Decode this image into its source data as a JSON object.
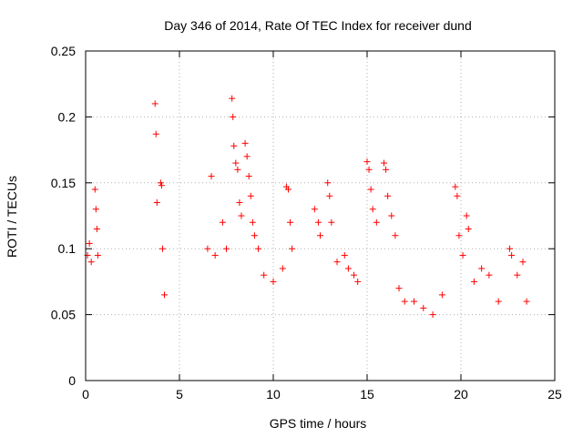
{
  "chart_data": {
    "type": "scatter",
    "title": "Day 346 of 2014, Rate Of TEC Index for receiver dund",
    "xlabel": "GPS time / hours",
    "ylabel": "ROTI / TECUs",
    "xlim": [
      0,
      25
    ],
    "ylim": [
      0,
      0.25
    ],
    "xticks": [
      0,
      5,
      10,
      15,
      20,
      25
    ],
    "xtick_labels": [
      "0",
      "5",
      "10",
      "15",
      "20",
      "25"
    ],
    "yticks": [
      0,
      0.05,
      0.1,
      0.15,
      0.2,
      0.25
    ],
    "ytick_labels": [
      "0",
      "0.05",
      "0.1",
      "0.15",
      "0.2",
      "0.25"
    ],
    "grid": true,
    "marker": "+",
    "marker_color": "#ff0000",
    "series": [
      {
        "name": "ROTI",
        "points": [
          [
            0.1,
            0.095
          ],
          [
            0.2,
            0.104
          ],
          [
            0.3,
            0.09
          ],
          [
            0.5,
            0.145
          ],
          [
            0.55,
            0.13
          ],
          [
            0.6,
            0.115
          ],
          [
            0.65,
            0.095
          ],
          [
            3.7,
            0.21
          ],
          [
            3.75,
            0.187
          ],
          [
            3.8,
            0.135
          ],
          [
            4.0,
            0.15
          ],
          [
            4.05,
            0.148
          ],
          [
            4.1,
            0.1
          ],
          [
            4.2,
            0.065
          ],
          [
            6.5,
            0.1
          ],
          [
            6.7,
            0.155
          ],
          [
            6.9,
            0.095
          ],
          [
            7.3,
            0.12
          ],
          [
            7.5,
            0.1
          ],
          [
            7.8,
            0.214
          ],
          [
            7.85,
            0.2
          ],
          [
            7.9,
            0.178
          ],
          [
            8.0,
            0.165
          ],
          [
            8.1,
            0.16
          ],
          [
            8.2,
            0.135
          ],
          [
            8.3,
            0.125
          ],
          [
            8.5,
            0.18
          ],
          [
            8.6,
            0.17
          ],
          [
            8.7,
            0.155
          ],
          [
            8.8,
            0.14
          ],
          [
            8.9,
            0.12
          ],
          [
            9.0,
            0.11
          ],
          [
            9.2,
            0.1
          ],
          [
            9.5,
            0.08
          ],
          [
            10.0,
            0.075
          ],
          [
            10.5,
            0.085
          ],
          [
            10.7,
            0.147
          ],
          [
            10.8,
            0.145
          ],
          [
            10.9,
            0.12
          ],
          [
            11.0,
            0.1
          ],
          [
            12.2,
            0.13
          ],
          [
            12.4,
            0.12
          ],
          [
            12.5,
            0.11
          ],
          [
            12.9,
            0.15
          ],
          [
            13.0,
            0.14
          ],
          [
            13.1,
            0.12
          ],
          [
            13.4,
            0.09
          ],
          [
            13.8,
            0.095
          ],
          [
            14.0,
            0.085
          ],
          [
            14.3,
            0.08
          ],
          [
            14.5,
            0.075
          ],
          [
            15.0,
            0.166
          ],
          [
            15.1,
            0.16
          ],
          [
            15.2,
            0.145
          ],
          [
            15.3,
            0.13
          ],
          [
            15.5,
            0.12
          ],
          [
            15.9,
            0.165
          ],
          [
            16.0,
            0.16
          ],
          [
            16.1,
            0.14
          ],
          [
            16.3,
            0.125
          ],
          [
            16.5,
            0.11
          ],
          [
            16.7,
            0.07
          ],
          [
            17.0,
            0.06
          ],
          [
            17.5,
            0.06
          ],
          [
            18.0,
            0.055
          ],
          [
            18.5,
            0.05
          ],
          [
            19.0,
            0.065
          ],
          [
            19.7,
            0.147
          ],
          [
            19.8,
            0.14
          ],
          [
            19.9,
            0.11
          ],
          [
            20.1,
            0.095
          ],
          [
            20.3,
            0.125
          ],
          [
            20.4,
            0.115
          ],
          [
            20.7,
            0.075
          ],
          [
            21.1,
            0.085
          ],
          [
            21.5,
            0.08
          ],
          [
            22.0,
            0.06
          ],
          [
            22.6,
            0.1
          ],
          [
            22.7,
            0.095
          ],
          [
            23.0,
            0.08
          ],
          [
            23.3,
            0.09
          ],
          [
            23.5,
            0.06
          ]
        ]
      }
    ]
  }
}
